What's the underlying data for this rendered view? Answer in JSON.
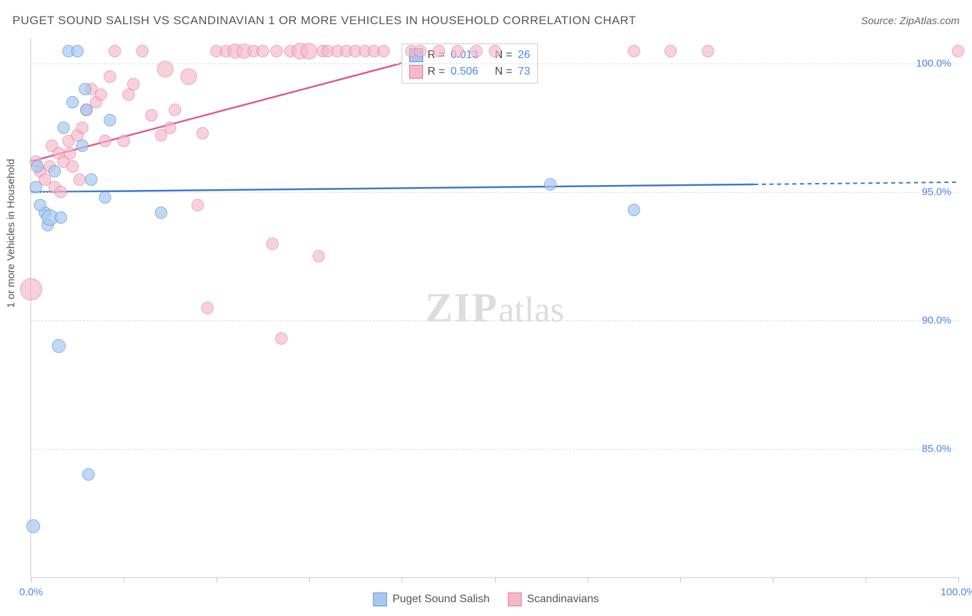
{
  "title": "PUGET SOUND SALISH VS SCANDINAVIAN 1 OR MORE VEHICLES IN HOUSEHOLD CORRELATION CHART",
  "source": "Source: ZipAtlas.com",
  "watermark_zip": "ZIP",
  "watermark_atlas": "atlas",
  "chart": {
    "type": "scatter",
    "xlim": [
      0,
      100
    ],
    "ylim": [
      80,
      101
    ],
    "x_ticks": [
      0,
      10,
      20,
      30,
      40,
      50,
      60,
      70,
      80,
      90,
      100
    ],
    "x_tick_labels": {
      "0": "0.0%",
      "100": "100.0%"
    },
    "y_ticks": [
      85,
      90,
      95,
      100
    ],
    "y_tick_labels": {
      "85": "85.0%",
      "90": "90.0%",
      "95": "95.0%",
      "100": "100.0%"
    },
    "y_label": "1 or more Vehicles in Household",
    "grid_color": "#dddddd",
    "border_color": "#cccccc",
    "series": {
      "blue": {
        "name": "Puget Sound Salish",
        "fill": "#a8c8f0",
        "stroke": "#5a8fd6",
        "opacity": 0.7,
        "marker_radius": 9,
        "R": "0.013",
        "N": "26",
        "trend": {
          "x1": 0,
          "y1": 95.0,
          "x2": 78,
          "y2": 95.3,
          "color": "#3a76d0",
          "dash_x2": 100
        },
        "points": [
          [
            0.5,
            95.2,
            9
          ],
          [
            0.7,
            96.0,
            9
          ],
          [
            1.5,
            94.2,
            9
          ],
          [
            1.0,
            94.5,
            9
          ],
          [
            1.8,
            93.7,
            9
          ],
          [
            2.0,
            94.0,
            12
          ],
          [
            2.5,
            95.8,
            9
          ],
          [
            3.2,
            94.0,
            9
          ],
          [
            3.5,
            97.5,
            9
          ],
          [
            4.0,
            100.5,
            9
          ],
          [
            5.0,
            100.5,
            9
          ],
          [
            5.5,
            96.8,
            9
          ],
          [
            5.8,
            99.0,
            9
          ],
          [
            6.0,
            98.2,
            9
          ],
          [
            6.5,
            95.5,
            9
          ],
          [
            6.2,
            84.0,
            9
          ],
          [
            3.0,
            89.0,
            10
          ],
          [
            8.0,
            94.8,
            9
          ],
          [
            8.5,
            97.8,
            9
          ],
          [
            14.0,
            94.2,
            9
          ],
          [
            56.0,
            95.3,
            9
          ],
          [
            65.0,
            94.3,
            9
          ],
          [
            0.2,
            82.0,
            10
          ],
          [
            4.5,
            98.5,
            9
          ]
        ]
      },
      "pink": {
        "name": "Scandinavians",
        "fill": "#f5b8c8",
        "stroke": "#e07a9a",
        "opacity": 0.65,
        "marker_radius": 9,
        "R": "0.506",
        "N": "73",
        "trend": {
          "x1": 0,
          "y1": 96.2,
          "x2": 45,
          "y2": 100.5,
          "color": "#e05a85"
        },
        "points": [
          [
            0.0,
            91.2,
            16
          ],
          [
            0.5,
            96.2,
            9
          ],
          [
            1.0,
            95.8,
            9
          ],
          [
            1.5,
            95.5,
            9
          ],
          [
            2.0,
            96.0,
            9
          ],
          [
            2.2,
            96.8,
            9
          ],
          [
            2.5,
            95.2,
            9
          ],
          [
            3.0,
            96.5,
            9
          ],
          [
            3.2,
            95.0,
            9
          ],
          [
            3.5,
            96.2,
            9
          ],
          [
            4.0,
            97.0,
            9
          ],
          [
            4.2,
            96.5,
            9
          ],
          [
            4.5,
            96.0,
            9
          ],
          [
            5.0,
            97.2,
            9
          ],
          [
            5.2,
            95.5,
            9
          ],
          [
            5.5,
            97.5,
            9
          ],
          [
            6.0,
            98.2,
            9
          ],
          [
            6.5,
            99.0,
            9
          ],
          [
            7.0,
            98.5,
            9
          ],
          [
            7.5,
            98.8,
            9
          ],
          [
            8.0,
            97.0,
            9
          ],
          [
            8.5,
            99.5,
            9
          ],
          [
            9.0,
            100.5,
            9
          ],
          [
            10.0,
            97.0,
            9
          ],
          [
            10.5,
            98.8,
            9
          ],
          [
            11.0,
            99.2,
            9
          ],
          [
            12.0,
            100.5,
            9
          ],
          [
            13.0,
            98.0,
            9
          ],
          [
            14.0,
            97.2,
            9
          ],
          [
            14.5,
            99.8,
            12
          ],
          [
            15.0,
            97.5,
            9
          ],
          [
            15.5,
            98.2,
            9
          ],
          [
            17.0,
            99.5,
            12
          ],
          [
            18.0,
            94.5,
            9
          ],
          [
            18.5,
            97.3,
            9
          ],
          [
            19.0,
            90.5,
            9
          ],
          [
            20.0,
            100.5,
            9
          ],
          [
            21.0,
            100.5,
            9
          ],
          [
            22.0,
            100.5,
            11
          ],
          [
            23.0,
            100.5,
            11
          ],
          [
            24.0,
            100.5,
            9
          ],
          [
            25.0,
            100.5,
            9
          ],
          [
            26.0,
            93.0,
            9
          ],
          [
            26.5,
            100.5,
            9
          ],
          [
            27.0,
            89.3,
            9
          ],
          [
            28.0,
            100.5,
            9
          ],
          [
            29.0,
            100.5,
            12
          ],
          [
            30.0,
            100.5,
            12
          ],
          [
            31.0,
            92.5,
            9
          ],
          [
            31.5,
            100.5,
            9
          ],
          [
            32.0,
            100.5,
            9
          ],
          [
            33.0,
            100.5,
            9
          ],
          [
            34.0,
            100.5,
            9
          ],
          [
            35.0,
            100.5,
            9
          ],
          [
            36.0,
            100.5,
            9
          ],
          [
            37.0,
            100.5,
            9
          ],
          [
            38.0,
            100.5,
            9
          ],
          [
            41.0,
            100.5,
            9
          ],
          [
            42.0,
            100.5,
            9
          ],
          [
            44.0,
            100.5,
            9
          ],
          [
            46.0,
            100.5,
            9
          ],
          [
            48.0,
            100.5,
            9
          ],
          [
            50.0,
            100.5,
            9
          ],
          [
            65.0,
            100.5,
            9
          ],
          [
            69.0,
            100.5,
            9
          ],
          [
            73.0,
            100.5,
            9
          ],
          [
            100.0,
            100.5,
            9
          ]
        ]
      }
    }
  },
  "stats_legend": {
    "R_label": "R =",
    "N_label": "N ="
  }
}
